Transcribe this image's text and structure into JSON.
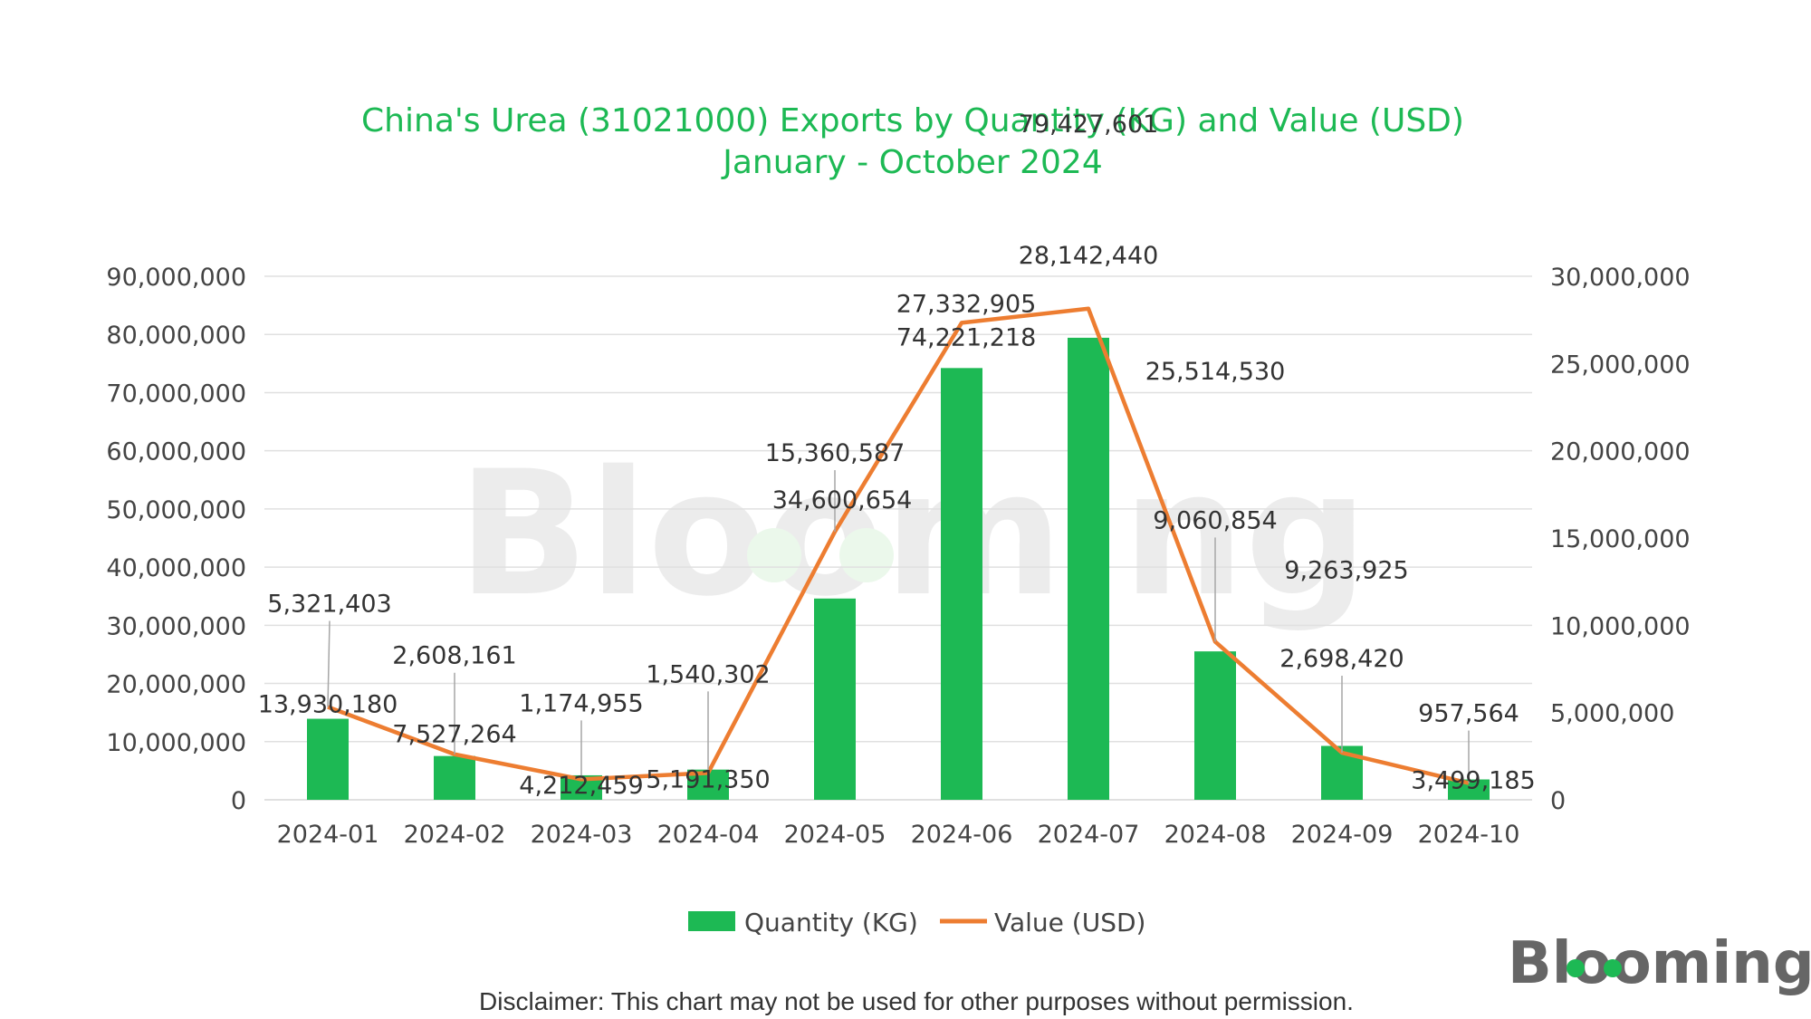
{
  "title_line1": "China's Urea (31021000) Exports by Quantity (KG) and Value (USD)",
  "title_line2": "January - October 2024",
  "disclaimer": "Disclaimer: This chart may not be used for other purposes without permission.",
  "logo_text": "Blooming",
  "watermark_text": "Blooming",
  "colors": {
    "title": "#1db954",
    "bar": "#1db954",
    "line": "#ed7d31",
    "grid": "#e0e0e0",
    "text": "#444444"
  },
  "chart_data": {
    "type": "bar",
    "title": "China's Urea (31021000) Exports by Quantity (KG) and Value (USD) January - October 2024",
    "categories": [
      "2024-01",
      "2024-02",
      "2024-03",
      "2024-04",
      "2024-05",
      "2024-06",
      "2024-07",
      "2024-08",
      "2024-09",
      "2024-10"
    ],
    "series": [
      {
        "name": "Quantity (KG)",
        "type": "bar",
        "axis": "left",
        "values": [
          13930180,
          7527264,
          4212459,
          5191350,
          34600654,
          74221218,
          79427601,
          25514530,
          9263925,
          3499185
        ],
        "labels": [
          "13,930,180",
          "7,527,264",
          "4,212,459",
          "5,191,350",
          "34,600,654",
          "74,221,218",
          "79,427,601",
          "25,514,530",
          "9,263,925",
          "3,499,185"
        ]
      },
      {
        "name": "Value (USD)",
        "type": "line",
        "axis": "right",
        "values": [
          5321403,
          2608161,
          1174955,
          1540302,
          15360587,
          27332905,
          28142440,
          9060854,
          2698420,
          957564
        ],
        "labels": [
          "5,321,403",
          "2,608,161",
          "1,174,955",
          "1,540,302",
          "15,360,587",
          "27,332,905",
          "28,142,440",
          "9,060,854",
          "2,698,420",
          "957,564"
        ]
      }
    ],
    "y_left": {
      "range": [
        0,
        90000000
      ],
      "ticks": [
        "0",
        "10,000,000",
        "20,000,000",
        "30,000,000",
        "40,000,000",
        "50,000,000",
        "60,000,000",
        "70,000,000",
        "80,000,000",
        "90,000,000"
      ]
    },
    "y_right": {
      "range": [
        0,
        30000000
      ],
      "ticks": [
        "0",
        "5,000,000",
        "10,000,000",
        "15,000,000",
        "20,000,000",
        "25,000,000",
        "30,000,000"
      ]
    },
    "grid": true,
    "legend_position": "bottom"
  }
}
